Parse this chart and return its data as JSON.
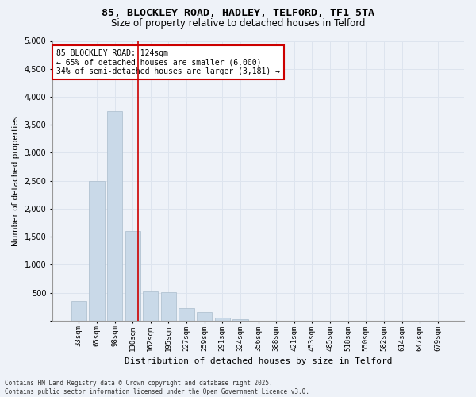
{
  "title_line1": "85, BLOCKLEY ROAD, HADLEY, TELFORD, TF1 5TA",
  "title_line2": "Size of property relative to detached houses in Telford",
  "xlabel": "Distribution of detached houses by size in Telford",
  "ylabel": "Number of detached properties",
  "categories": [
    "33sqm",
    "65sqm",
    "98sqm",
    "130sqm",
    "162sqm",
    "195sqm",
    "227sqm",
    "259sqm",
    "291sqm",
    "324sqm",
    "356sqm",
    "388sqm",
    "421sqm",
    "453sqm",
    "485sqm",
    "518sqm",
    "550sqm",
    "582sqm",
    "614sqm",
    "647sqm",
    "679sqm"
  ],
  "values": [
    350,
    2500,
    3750,
    1600,
    520,
    510,
    220,
    150,
    55,
    20,
    5,
    0,
    0,
    0,
    0,
    0,
    0,
    0,
    0,
    0,
    0
  ],
  "bar_color": "#c9d9e8",
  "bar_edge_color": "#aabccc",
  "grid_color": "#dde4ee",
  "background_color": "#eef2f8",
  "red_line_index": 3,
  "red_line_color": "#cc0000",
  "annotation_text": "85 BLOCKLEY ROAD: 124sqm\n← 65% of detached houses are smaller (6,000)\n34% of semi-detached houses are larger (3,181) →",
  "annotation_box_color": "#ffffff",
  "annotation_border_color": "#cc0000",
  "ylim": [
    0,
    5000
  ],
  "yticks": [
    0,
    500,
    1000,
    1500,
    2000,
    2500,
    3000,
    3500,
    4000,
    4500,
    5000
  ],
  "footer_line1": "Contains HM Land Registry data © Crown copyright and database right 2025.",
  "footer_line2": "Contains public sector information licensed under the Open Government Licence v3.0."
}
